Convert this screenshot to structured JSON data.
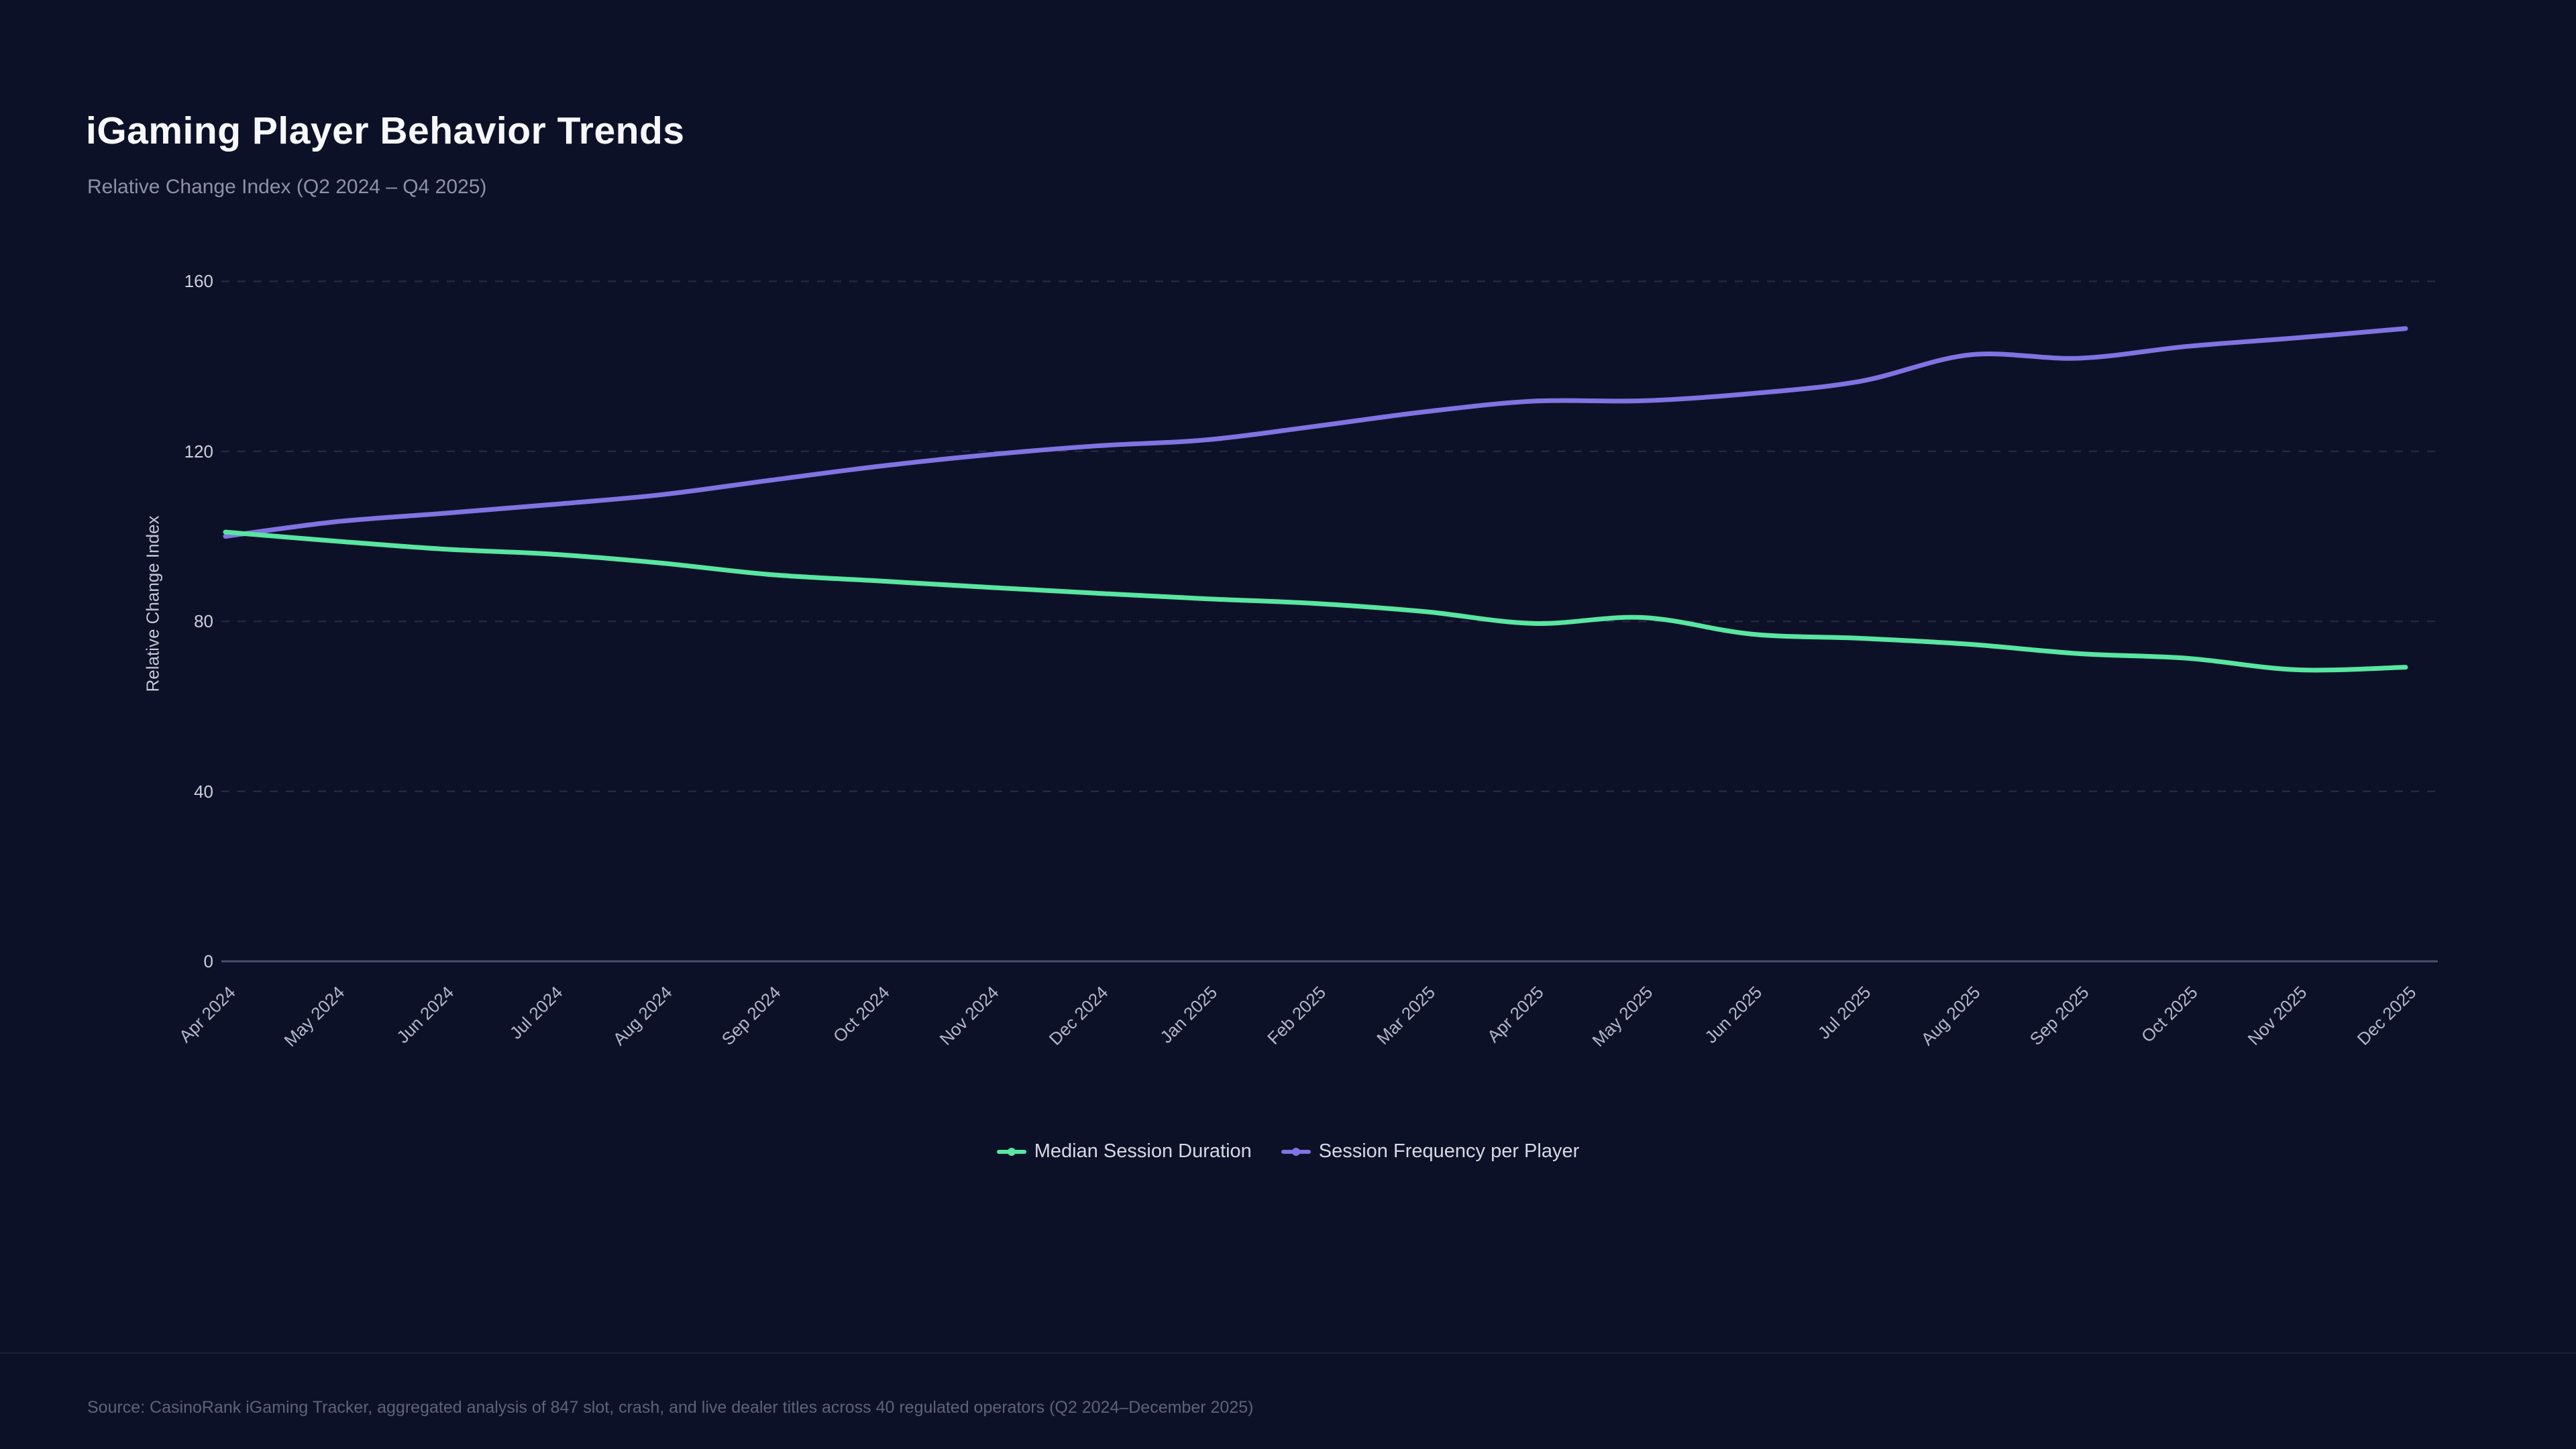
{
  "header": {
    "title": "iGaming Player Behavior Trends",
    "subtitle": "Relative Change Index (Q2 2024 – Q4 2025)"
  },
  "chart_data": {
    "type": "line",
    "title": "iGaming Player Behavior Trends",
    "subtitle": "Relative Change Index (Q2 2024 – Q4 2025)",
    "categories": [
      "Apr 2024",
      "May 2024",
      "Jun 2024",
      "Jul 2024",
      "Aug 2024",
      "Sep 2024",
      "Oct 2024",
      "Nov 2024",
      "Dec 2024",
      "Jan 2025",
      "Feb 2025",
      "Mar 2025",
      "Apr 2025",
      "May 2025",
      "Jun 2025",
      "Jul 2025",
      "Aug 2025",
      "Sep 2025",
      "Oct 2025",
      "Nov 2025",
      "Dec 2025"
    ],
    "series": [
      {
        "name": "Median Session Duration",
        "color": "#58e6a0",
        "values": [
          101,
          98.9,
          97,
          95.8,
          93.7,
          91,
          89.5,
          88,
          86.6,
          85.3,
          84.2,
          82.3,
          79.5,
          80.9,
          77,
          76,
          74.6,
          72.4,
          71.3,
          68.6,
          69.2
        ]
      },
      {
        "name": "Session Frequency per Player",
        "color": "#8173e2",
        "values": [
          100,
          103.4,
          105.4,
          107.5,
          109.8,
          113.2,
          116.5,
          119.2,
          121.3,
          122.7,
          125.9,
          129.3,
          131.8,
          131.9,
          133.6,
          136.5,
          142.7,
          141.9,
          144.7,
          146.7,
          148.9
        ]
      }
    ],
    "xlabel": "",
    "ylabel": "Relative Change Index",
    "yticks": [
      0,
      40,
      80,
      120,
      160
    ],
    "ylim": [
      0,
      168
    ],
    "grid": "horizontal-dashed",
    "legend_position": "bottom-center",
    "colors": {
      "background": "#0d1128",
      "axis": "#4a506b",
      "grid": "#272c4c",
      "tick_text": "#ccd0dc"
    }
  },
  "footer": {
    "source": "Source: CasinoRank iGaming Tracker, aggregated analysis of 847 slot, crash, and live dealer titles across 40 regulated operators (Q2 2024–December 2025)"
  }
}
